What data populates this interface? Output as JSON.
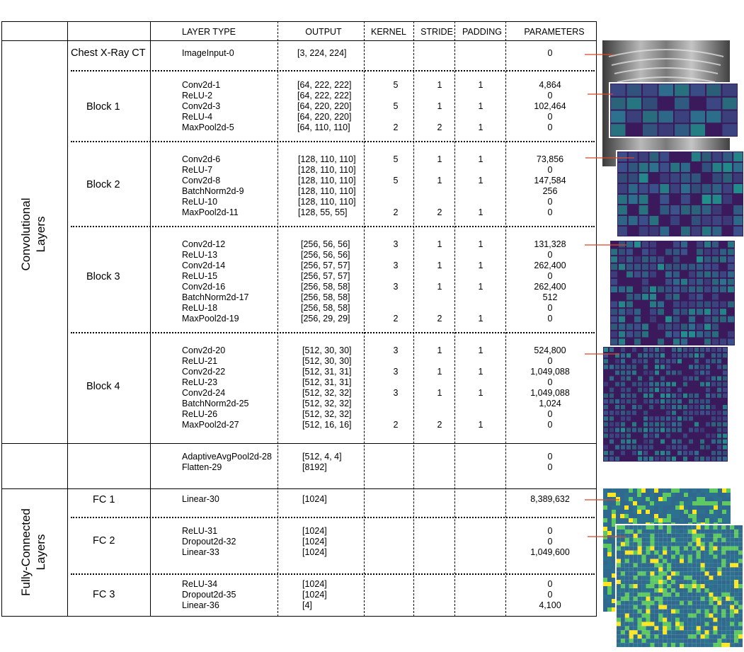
{
  "headers": {
    "layer_type": "LAYER TYPE",
    "output": "OUTPUT",
    "kernel": "KERNEL",
    "stride": "STRIDE",
    "padding": "PADDING",
    "parameters": "PARAMETERS"
  },
  "section_labels": {
    "convolutional": "Convolutional\nLayers",
    "fully_connected": "Fully-Connected\nLayers"
  },
  "group_labels": {
    "input": "Chest X-Ray CT",
    "block1": "Block 1",
    "block2": "Block 2",
    "block3": "Block 3",
    "block4": "Block 4",
    "fc1": "FC 1",
    "fc2": "FC 2",
    "fc3": "FC 3"
  },
  "rows": [
    {
      "layer": "ImageInput-0",
      "output": "[3, 224, 224]",
      "kernel": "",
      "stride": "",
      "padding": "",
      "params": "0"
    },
    {
      "layer": "Conv2d-1",
      "output": "[64, 222, 222]",
      "kernel": "5",
      "stride": "1",
      "padding": "1",
      "params": "4,864"
    },
    {
      "layer": "ReLU-2",
      "output": "[64, 222, 222]",
      "kernel": "",
      "stride": "",
      "padding": "",
      "params": "0"
    },
    {
      "layer": "Conv2d-3",
      "output": "[64, 220, 220]",
      "kernel": "5",
      "stride": "1",
      "padding": "1",
      "params": "102,464"
    },
    {
      "layer": "ReLU-4",
      "output": "[64, 220, 220]",
      "kernel": "",
      "stride": "",
      "padding": "",
      "params": "0"
    },
    {
      "layer": "MaxPool2d-5",
      "output": "[64, 110, 110]",
      "kernel": "2",
      "stride": "2",
      "padding": "1",
      "params": "0"
    },
    {
      "layer": "Conv2d-6",
      "output": "[128, 110, 110]",
      "kernel": "5",
      "stride": "1",
      "padding": "1",
      "params": "73,856"
    },
    {
      "layer": "ReLU-7",
      "output": "[128, 110, 110]",
      "kernel": "",
      "stride": "",
      "padding": "",
      "params": "0"
    },
    {
      "layer": "Conv2d-8",
      "output": "[128, 110, 110]",
      "kernel": "5",
      "stride": "1",
      "padding": "1",
      "params": "147,584"
    },
    {
      "layer": "BatchNorm2d-9",
      "output": "[128, 110, 110]",
      "kernel": "",
      "stride": "",
      "padding": "",
      "params": "256"
    },
    {
      "layer": "ReLU-10",
      "output": "[128, 110, 110]",
      "kernel": "",
      "stride": "",
      "padding": "",
      "params": "0"
    },
    {
      "layer": "MaxPool2d-11",
      "output": "[128, 55, 55]",
      "kernel": "2",
      "stride": "2",
      "padding": "1",
      "params": "0"
    },
    {
      "layer": "Conv2d-12",
      "output": "[256, 56, 56]",
      "kernel": "3",
      "stride": "1",
      "padding": "1",
      "params": "131,328"
    },
    {
      "layer": "ReLU-13",
      "output": "[256, 56, 56]",
      "kernel": "",
      "stride": "",
      "padding": "",
      "params": "0"
    },
    {
      "layer": "Conv2d-14",
      "output": "[256, 57, 57]",
      "kernel": "3",
      "stride": "1",
      "padding": "1",
      "params": "262,400"
    },
    {
      "layer": "ReLU-15",
      "output": "[256, 57, 57]",
      "kernel": "",
      "stride": "",
      "padding": "",
      "params": "0"
    },
    {
      "layer": "Conv2d-16",
      "output": "[256, 58, 58]",
      "kernel": "3",
      "stride": "1",
      "padding": "1",
      "params": "262,400"
    },
    {
      "layer": "BatchNorm2d-17",
      "output": "[256, 58, 58]",
      "kernel": "",
      "stride": "",
      "padding": "",
      "params": "512"
    },
    {
      "layer": "ReLU-18",
      "output": "[256, 58, 58]",
      "kernel": "",
      "stride": "",
      "padding": "",
      "params": "0"
    },
    {
      "layer": "MaxPool2d-19",
      "output": "[256, 29, 29]",
      "kernel": "2",
      "stride": "2",
      "padding": "1",
      "params": "0"
    },
    {
      "layer": "Conv2d-20",
      "output": "[512, 30, 30]",
      "kernel": "3",
      "stride": "1",
      "padding": "1",
      "params": "524,800"
    },
    {
      "layer": "ReLU-21",
      "output": "[512, 30, 30]",
      "kernel": "",
      "stride": "",
      "padding": "",
      "params": "0"
    },
    {
      "layer": "Conv2d-22",
      "output": "[512, 31, 31]",
      "kernel": "3",
      "stride": "1",
      "padding": "1",
      "params": "1,049,088"
    },
    {
      "layer": "ReLU-23",
      "output": "[512, 31, 31]",
      "kernel": "",
      "stride": "",
      "padding": "",
      "params": "0"
    },
    {
      "layer": "Conv2d-24",
      "output": "[512, 32, 32]",
      "kernel": "3",
      "stride": "1",
      "padding": "1",
      "params": "1,049,088"
    },
    {
      "layer": "BatchNorm2d-25",
      "output": "[512, 32, 32]",
      "kernel": "",
      "stride": "",
      "padding": "",
      "params": "1,024"
    },
    {
      "layer": "ReLU-26",
      "output": "[512, 32, 32]",
      "kernel": "",
      "stride": "",
      "padding": "",
      "params": "0"
    },
    {
      "layer": "MaxPool2d-27",
      "output": "[512, 16, 16]",
      "kernel": "2",
      "stride": "2",
      "padding": "1",
      "params": "0"
    },
    {
      "layer": "AdaptiveAvgPool2d-28",
      "output": "[512, 4, 4]",
      "kernel": "",
      "stride": "",
      "padding": "",
      "params": "0"
    },
    {
      "layer": "Flatten-29",
      "output": "[8192]",
      "kernel": "",
      "stride": "",
      "padding": "",
      "params": "0"
    },
    {
      "layer": "Linear-30",
      "output": "[1024]",
      "kernel": "",
      "stride": "",
      "padding": "",
      "params": "8,389,632"
    },
    {
      "layer": "ReLU-31",
      "output": "[1024]",
      "kernel": "",
      "stride": "",
      "padding": "",
      "params": "0"
    },
    {
      "layer": "Dropout2d-32",
      "output": "[1024]",
      "kernel": "",
      "stride": "",
      "padding": "",
      "params": "0"
    },
    {
      "layer": "Linear-33",
      "output": "[1024]",
      "kernel": "",
      "stride": "",
      "padding": "",
      "params": "1,049,600"
    },
    {
      "layer": "ReLU-34",
      "output": "[1024]",
      "kernel": "",
      "stride": "",
      "padding": "",
      "params": "0"
    },
    {
      "layer": "Dropout2d-35",
      "output": "[1024]",
      "kernel": "",
      "stride": "",
      "padding": "",
      "params": "0"
    },
    {
      "layer": "Linear-36",
      "output": "[4]",
      "kernel": "",
      "stride": "",
      "padding": "",
      "params": "4,100"
    }
  ],
  "colors": {
    "arrow": "#d9472b",
    "feature_dark": "#3b1a5c",
    "feature_mid": "#2c728e",
    "feature_light": "#5ec962",
    "feature_bright": "#fde725"
  }
}
